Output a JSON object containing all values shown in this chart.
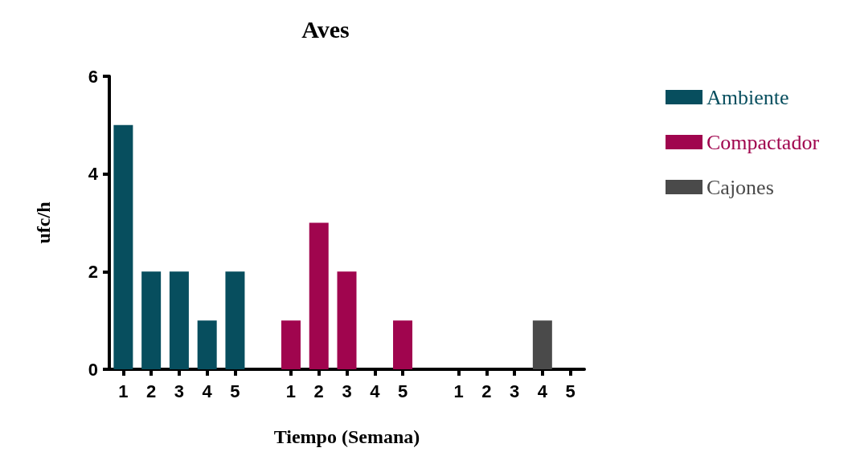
{
  "chart_data": {
    "type": "bar",
    "title": "Aves",
    "xlabel": "Tiempo (Semana)",
    "ylabel": "ufc/h",
    "categories": [
      "1",
      "2",
      "3",
      "4",
      "5",
      null,
      "1",
      "2",
      "3",
      "4",
      "5",
      null,
      "1",
      "2",
      "3",
      "4",
      "5"
    ],
    "series": [
      {
        "name": "Ambiente",
        "color": "#074e5e",
        "values": [
          5,
          2,
          2,
          1,
          2,
          null,
          null,
          null,
          null,
          null,
          null,
          null,
          null,
          null,
          null,
          null,
          null
        ]
      },
      {
        "name": "Compactador",
        "color": "#a0054e",
        "values": [
          null,
          null,
          null,
          null,
          null,
          null,
          1,
          3,
          2,
          0,
          1,
          null,
          null,
          null,
          null,
          null,
          null
        ]
      },
      {
        "name": "Cajones",
        "color": "#4a4a4a",
        "values": [
          null,
          null,
          null,
          null,
          null,
          null,
          null,
          null,
          null,
          null,
          null,
          null,
          0,
          0,
          0,
          1,
          0
        ]
      }
    ],
    "ylim": [
      0,
      6
    ],
    "yticks": [
      0,
      2,
      4,
      6
    ],
    "grid": false,
    "legend": "top right"
  }
}
